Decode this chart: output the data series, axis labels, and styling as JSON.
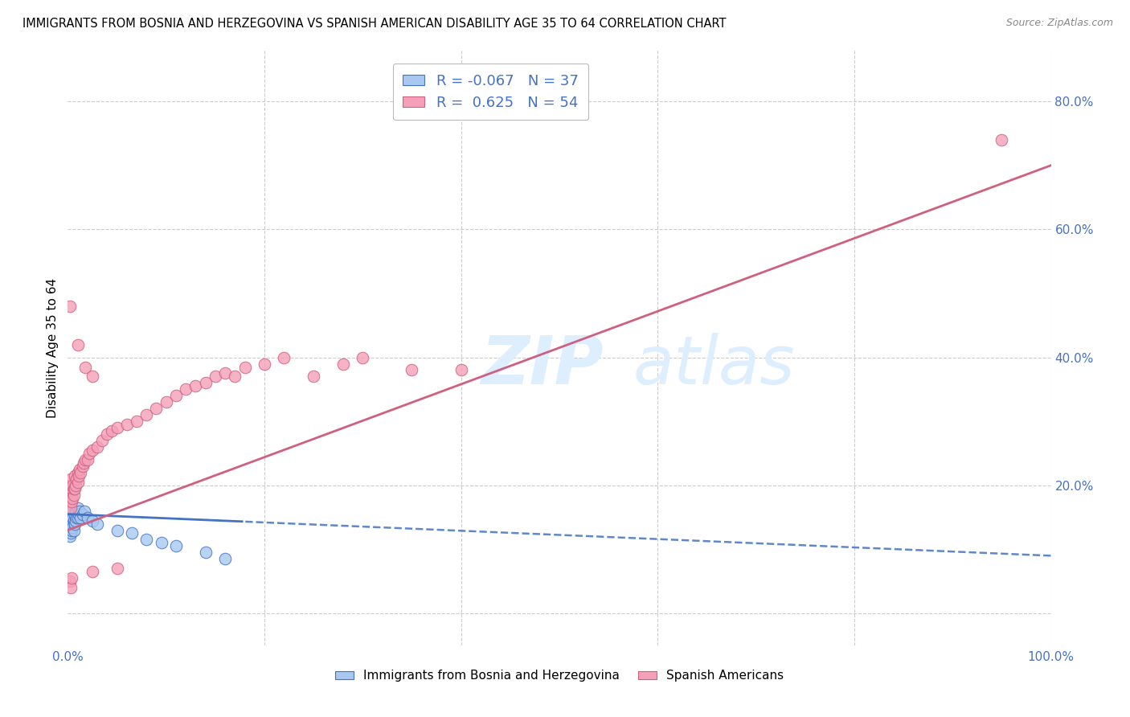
{
  "title": "IMMIGRANTS FROM BOSNIA AND HERZEGOVINA VS SPANISH AMERICAN DISABILITY AGE 35 TO 64 CORRELATION CHART",
  "source": "Source: ZipAtlas.com",
  "ylabel": "Disability Age 35 to 64",
  "xlim": [
    0.0,
    1.0
  ],
  "ylim": [
    -0.05,
    0.88
  ],
  "blue_R": -0.067,
  "blue_N": 37,
  "pink_R": 0.625,
  "pink_N": 54,
  "blue_color": "#a8c8f0",
  "pink_color": "#f4a0b8",
  "blue_edge_color": "#4472c4",
  "pink_edge_color": "#d06080",
  "blue_line_color": "#4472c4",
  "pink_line_color": "#d06080",
  "background_color": "#ffffff",
  "grid_color": "#cccccc",
  "axis_color": "#4472c4",
  "watermark_color": "#ddeeff",
  "blue_line_solid_end": 0.18,
  "pink_line_start_y": 0.13,
  "pink_line_end_y": 0.7,
  "blue_line_start_y": 0.155,
  "blue_line_end_y": 0.09
}
